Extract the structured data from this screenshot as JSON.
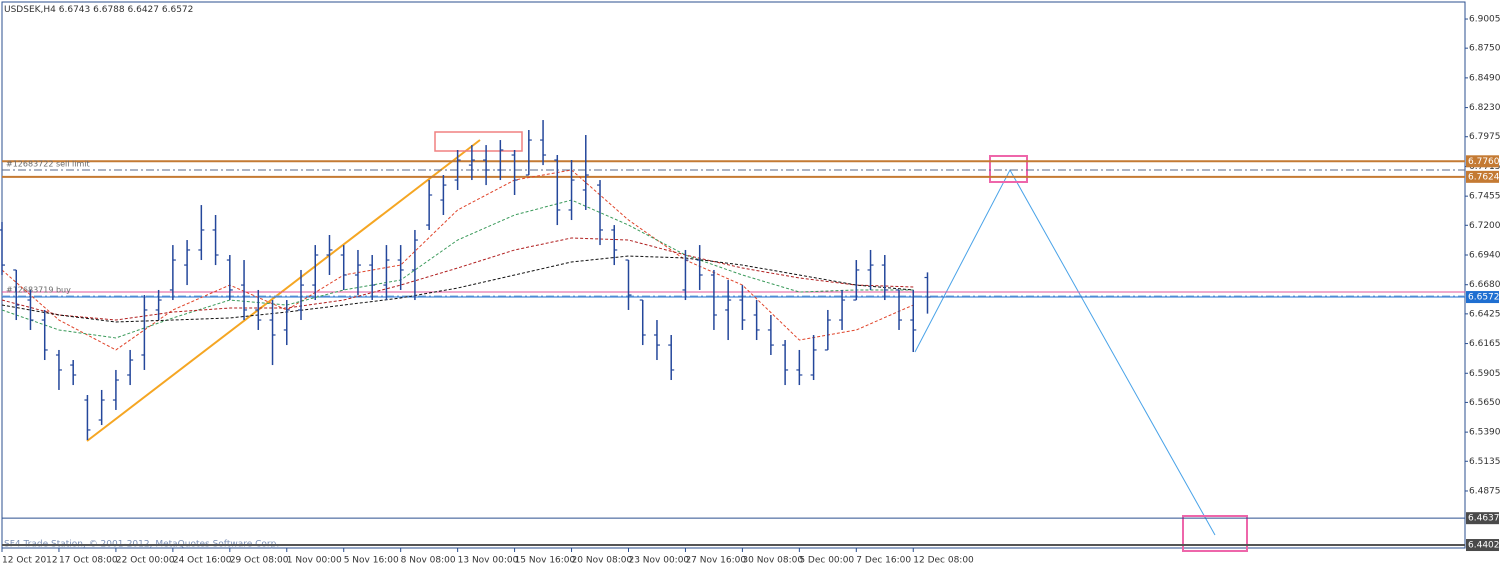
{
  "chart_data": {
    "type": "ohlc",
    "header": {
      "symbol": "USDSEK,H4",
      "open": 6.6743,
      "high": 6.6788,
      "low": 6.6427,
      "close": 6.6572
    },
    "footer": "SF4 Trade Station, © 2001-2012, MetaQuotes Software Corp.",
    "bar_color": "#24479b",
    "x": [
      0,
      4,
      8,
      12,
      16,
      20,
      24,
      28,
      32,
      36,
      40,
      44,
      48,
      52,
      56,
      60,
      64,
      68,
      72,
      76,
      80,
      84,
      88,
      92,
      96,
      100,
      104,
      108,
      112,
      116,
      120,
      124,
      128,
      132,
      136,
      140,
      144,
      148,
      152,
      156,
      160,
      164,
      168,
      172,
      176,
      180,
      184,
      188,
      192,
      196,
      200,
      204,
      208,
      212,
      216,
      220,
      224,
      228,
      232,
      236,
      240,
      244,
      248,
      252,
      256,
      260
    ],
    "open": [
      6.7159,
      6.6809,
      6.6546,
      6.6371,
      6.6065,
      6.5977,
      6.5671,
      6.5496,
      6.5671,
      6.589,
      6.6065,
      6.6459,
      6.6634,
      6.6852,
      6.6984,
      6.7159,
      6.6896,
      6.6677,
      6.6459,
      6.6371,
      6.6284,
      6.6459,
      6.6677,
      6.694,
      6.694,
      6.6765,
      6.6852,
      6.6677,
      6.6896,
      6.6809,
      6.7202,
      6.7421,
      6.7596,
      6.7727,
      6.7771,
      6.7684,
      6.7815,
      6.764,
      6.7946,
      6.7771,
      6.7334,
      6.7509,
      6.7552,
      6.7159,
      6.6896,
      6.6546,
      6.624,
      6.6152,
      6.6634,
      6.6896,
      6.6765,
      6.6459,
      6.6546,
      6.6415,
      6.6284,
      6.6152,
      6.5934,
      6.589,
      6.6109,
      6.6371,
      6.6546,
      6.6809,
      6.6852,
      6.6634,
      6.6371,
      6.6743
    ],
    "high": [
      6.7229,
      6.6809,
      6.6634,
      6.6459,
      6.6109,
      6.6021,
      6.5715,
      6.5759,
      6.5934,
      6.6109,
      6.659,
      6.6634,
      6.7027,
      6.7071,
      6.7377,
      6.729,
      6.694,
      6.6896,
      6.6634,
      6.6546,
      6.6546,
      6.6809,
      6.7027,
      6.7115,
      6.7027,
      6.6984,
      6.694,
      6.7027,
      6.7027,
      6.7159,
      6.7596,
      6.764,
      6.7859,
      6.7902,
      6.7902,
      6.7946,
      6.7859,
      6.8034,
      6.8121,
      6.7815,
      6.7771,
      6.799,
      6.7596,
      6.7202,
      6.6896,
      6.6546,
      6.6371,
      6.624,
      6.6984,
      6.7027,
      6.6809,
      6.6721,
      6.6677,
      6.6546,
      6.6415,
      6.6196,
      6.6109,
      6.624,
      6.6459,
      6.6634,
      6.6896,
      6.6984,
      6.694,
      6.6634,
      6.6634,
      6.6788
    ],
    "low": [
      6.6765,
      6.6371,
      6.6284,
      6.6021,
      6.5759,
      6.5802,
      6.5321,
      6.5452,
      6.5584,
      6.5802,
      6.5934,
      6.6371,
      6.6546,
      6.6677,
      6.6896,
      6.6852,
      6.6546,
      6.6371,
      6.6284,
      6.5977,
      6.6152,
      6.6371,
      6.6546,
      6.6765,
      6.6634,
      6.659,
      6.6546,
      6.6546,
      6.6634,
      6.6546,
      6.7159,
      6.729,
      6.7509,
      6.7596,
      6.7552,
      6.7596,
      6.7465,
      6.764,
      6.7727,
      6.7202,
      6.7246,
      6.7334,
      6.7027,
      6.6852,
      6.6459,
      6.6152,
      6.6021,
      6.5846,
      6.6546,
      6.6634,
      6.6284,
      6.6196,
      6.6284,
      6.6196,
      6.6065,
      6.5802,
      6.5802,
      6.5846,
      6.6109,
      6.6284,
      6.6546,
      6.6634,
      6.6546,
      6.6284,
      6.6091,
      6.6427
    ],
    "close": [
      6.6852,
      6.6502,
      6.6371,
      6.6109,
      6.5934,
      6.589,
      6.5409,
      6.5671,
      6.5846,
      6.6021,
      6.6459,
      6.6546,
      6.6896,
      6.6984,
      6.7159,
      6.694,
      6.6634,
      6.6459,
      6.6371,
      6.624,
      6.6459,
      6.6677,
      6.694,
      6.6984,
      6.6765,
      6.6852,
      6.6677,
      6.6896,
      6.6809,
      6.7071,
      6.7465,
      6.7552,
      6.7771,
      6.7771,
      6.7684,
      6.7859,
      6.7596,
      6.7946,
      6.7815,
      6.7334,
      6.7596,
      6.764,
      6.7159,
      6.6984,
      6.659,
      6.624,
      6.6152,
      6.5934,
      6.6896,
      6.6765,
      6.6415,
      6.6546,
      6.6371,
      6.6284,
      6.6152,
      6.5934,
      6.589,
      6.6109,
      6.6371,
      6.6546,
      6.6809,
      6.6852,
      6.6634,
      6.6371,
      6.6284,
      6.6572
    ],
    "ma_x": [
      0,
      16,
      32,
      48,
      64,
      80,
      96,
      112,
      128,
      144,
      160,
      176,
      192,
      208,
      224,
      240,
      256
    ],
    "moving_averages": [
      {
        "color": "#e0452b",
        "values": [
          6.6809,
          6.6371,
          6.6109,
          6.6459,
          6.6677,
          6.6459,
          6.6765,
          6.6852,
          6.7334,
          6.7596,
          6.7684,
          6.7246,
          6.6896,
          6.6677,
          6.6196,
          6.6284,
          6.6502
        ]
      },
      {
        "color": "#3a9a5a",
        "values": [
          6.6459,
          6.6284,
          6.6214,
          6.6389,
          6.6546,
          6.6502,
          6.6634,
          6.6721,
          6.7071,
          6.729,
          6.7421,
          6.7202,
          6.694,
          6.6765,
          6.6616,
          6.6634,
          6.6634
        ]
      },
      {
        "color": "#b01e1e",
        "values": [
          6.6546,
          6.6415,
          6.6371,
          6.6441,
          6.6476,
          6.6476,
          6.6546,
          6.6677,
          6.6826,
          6.6984,
          6.7089,
          6.7071,
          6.694,
          6.6826,
          6.6739,
          6.6677,
          6.666
        ]
      },
      {
        "color": "#111111",
        "values": [
          6.6502,
          6.6415,
          6.6354,
          6.6371,
          6.6389,
          6.6441,
          6.6502,
          6.6564,
          6.6651,
          6.6765,
          6.6879,
          6.6931,
          6.6914,
          6.6852,
          6.6765,
          6.6677,
          6.6634
        ]
      }
    ],
    "levels": [
      {
        "price": 6.776,
        "price_label": "6.7760",
        "color": "#c47a33",
        "width": 2,
        "tag": true
      },
      {
        "price": 6.7624,
        "color": "#c47a33",
        "width": 2,
        "tag": true
      },
      {
        "price": 6.7684,
        "color": "#5a6a8a",
        "width": 1,
        "dash": true,
        "text": "#12683722 sell limit"
      },
      {
        "price": 6.6616,
        "color": "#e0559a",
        "width": 1
      },
      {
        "price": 6.6581,
        "color": "#7fa8d8",
        "width": 1,
        "dash": true,
        "text": "#12683719 buy"
      },
      {
        "price": 6.6572,
        "color": "#1f6fd1",
        "width": 1,
        "tag": true
      },
      {
        "price": 6.4637,
        "color": "#2b4f8f",
        "width": 1,
        "tag": true,
        "tag_color": "#4a4a4a"
      },
      {
        "price": 6.4402,
        "color": "#555555",
        "width": 2,
        "tag": true,
        "tag_color": "#4a4a4a"
      }
    ],
    "xlim": [
      0,
      411
    ],
    "ylim": [
      6.4376,
      6.9154
    ],
    "yticks": [
      6.9005,
      {
        "value": 6.875,
        "label": "6.8750"
      },
      {
        "value": 6.849,
        "label": "6.8490"
      },
      {
        "value": 6.823,
        "label": "6.8230"
      },
      6.7975,
      6.7715,
      6.7455,
      {
        "value": 6.72,
        "label": "6.7200"
      },
      {
        "value": 6.694,
        "label": "6.6940"
      },
      {
        "value": 6.668,
        "label": "6.6680"
      },
      6.6425,
      6.6165,
      6.5905,
      {
        "value": 6.565,
        "label": "6.5650"
      },
      {
        "value": 6.539,
        "label": "6.5390"
      },
      6.5135,
      6.4875
    ],
    "xticks": [
      {
        "value": 0,
        "label": "12 Oct 2012"
      },
      {
        "value": 16,
        "label": "17 Oct 08:00"
      },
      {
        "value": 32,
        "label": "22 Oct 00:00"
      },
      {
        "value": 48,
        "label": "24 Oct 16:00"
      },
      {
        "value": 64,
        "label": "29 Oct 08:00"
      },
      {
        "value": 80,
        "label": "1 Nov 00:00"
      },
      {
        "value": 96,
        "label": "5 Nov 16:00"
      },
      {
        "value": 112,
        "label": "8 Nov 08:00"
      },
      {
        "value": 128,
        "label": "13 Nov 00:00"
      },
      {
        "value": 144,
        "label": "15 Nov 16:00"
      },
      {
        "value": 160,
        "label": "20 Nov 08:00"
      },
      {
        "value": 176,
        "label": "23 Nov 00:00"
      },
      {
        "value": 192,
        "label": "27 Nov 16:00"
      },
      {
        "value": 208,
        "label": "30 Nov 08:00"
      },
      {
        "value": 224,
        "label": "5 Dec 00:00"
      },
      {
        "value": 240,
        "label": "7 Dec 16:00"
      },
      {
        "value": 256,
        "label": "12 Dec 08:00"
      }
    ]
  }
}
